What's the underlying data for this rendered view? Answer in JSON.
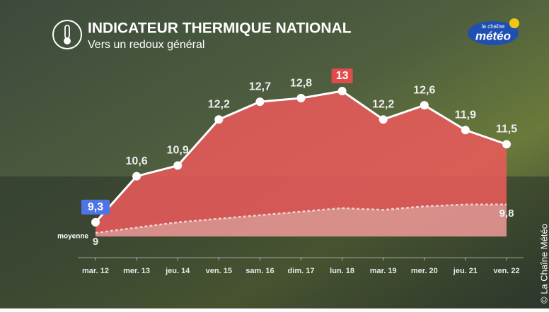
{
  "chart_data": {
    "type": "area",
    "title": "INDICATEUR THERMIQUE NATIONAL",
    "subtitle": "Vers un redoux général",
    "categories": [
      "mar. 12",
      "mer. 13",
      "jeu. 14",
      "ven. 15",
      "sam. 16",
      "dim. 17",
      "lun. 18",
      "mar. 19",
      "mer. 20",
      "jeu. 21",
      "ven. 22"
    ],
    "series": [
      {
        "color": "#e85a5a",
        "values": [
          9.3,
          10.6,
          10.9,
          12.2,
          12.7,
          12.8,
          13,
          12.2,
          12.6,
          11.9,
          11.5
        ],
        "value_labels": [
          "9,3",
          "10,6",
          "10,9",
          "12,2",
          "12,7",
          "12,8",
          "13",
          "12,2",
          "12,6",
          "11,9",
          "11,5"
        ]
      },
      {
        "name": "moyenne",
        "color": "#f29a9a",
        "values": [
          9,
          9.15,
          9.3,
          9.4,
          9.5,
          9.6,
          9.7,
          9.65,
          9.75,
          9.8,
          9.8
        ],
        "value_labels": [
          "9",
          null,
          null,
          null,
          null,
          null,
          null,
          null,
          null,
          null,
          "9,8"
        ]
      }
    ],
    "first_label_color": "#4f74e6",
    "max_label_color": "#e04b4b",
    "logo": {
      "top": "la chaîne",
      "main": "météo"
    },
    "credit": "© La Chaîne Météo"
  }
}
